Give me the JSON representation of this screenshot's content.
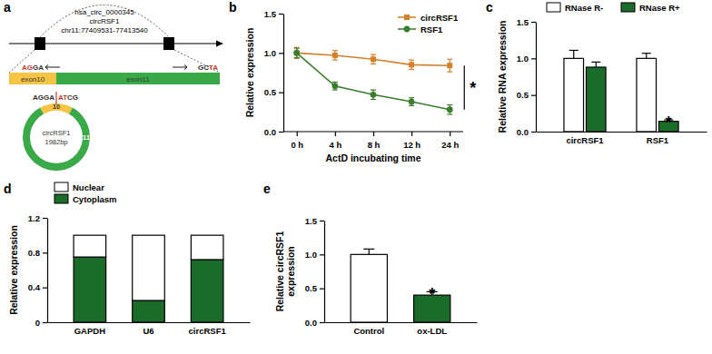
{
  "diagram": {
    "label": "a",
    "title": [
      "hsa_circ_0000345",
      "circRSF1",
      "chr11:77409531-77413540"
    ],
    "exons": [
      {
        "name": "exon10",
        "color": "#f6c445"
      },
      {
        "name": "exon11",
        "color": "#3aaa48"
      }
    ],
    "junction_left": [
      {
        "text": "AG",
        "color": "#c0392b"
      },
      {
        "text": "GA",
        "color": "#333333"
      }
    ],
    "junction_right": [
      {
        "text": "GC",
        "color": "#333333"
      },
      {
        "text": "TA",
        "color": "#c0392b"
      }
    ],
    "circle": {
      "name": "circRSF1",
      "length": "1982bp",
      "exon_labels": [
        "10",
        "11"
      ],
      "junction_left": [
        {
          "text": "AGGA",
          "color": "#333333"
        }
      ],
      "junction_right": [
        {
          "text": "AT",
          "color": "#c0392b"
        },
        {
          "text": "CG",
          "color": "#333333"
        }
      ]
    }
  },
  "chart_data": [
    {
      "type": "line",
      "label": "b",
      "xlabel": "ActD incubating time",
      "ylabel": "Relative expression",
      "categories": [
        "0 h",
        "4 h",
        "8 h",
        "12 h",
        "24 h"
      ],
      "ylim": [
        0,
        1.5
      ],
      "yticks": [
        {
          "value": 0,
          "label": "0.0"
        },
        {
          "value": 0.5,
          "label": "0.5"
        },
        {
          "value": 1,
          "label": "1.0"
        },
        {
          "value": 1.5,
          "label": "1.5"
        }
      ],
      "legend": "top-right",
      "series": [
        {
          "name": "circRSF1",
          "color": "#d4802a",
          "marker": "square",
          "line_style": "solid",
          "values": [
            1.0,
            0.97,
            0.92,
            0.85,
            0.84
          ],
          "errors": [
            0.07,
            0.06,
            0.06,
            0.06,
            0.08
          ]
        },
        {
          "name": "RSF1",
          "color": "#3a7d2c",
          "marker": "circle",
          "line_style": "solid",
          "values": [
            1.0,
            0.58,
            0.47,
            0.38,
            0.28
          ],
          "errors": [
            0.06,
            0.05,
            0.06,
            0.05,
            0.06
          ]
        }
      ],
      "annotations": [
        {
          "text": "*",
          "series": [
            "circRSF1",
            "RSF1"
          ]
        }
      ]
    },
    {
      "type": "bar",
      "label": "c",
      "ylabel": "Relative RNA expression",
      "categories": [
        "circRSF1",
        "RSF1"
      ],
      "ylim": [
        0,
        1.5
      ],
      "yticks": [
        {
          "value": 0,
          "label": "0.0"
        },
        {
          "value": 0.5,
          "label": "0.5"
        },
        {
          "value": 1,
          "label": "1.0"
        },
        {
          "value": 1.5,
          "label": "1.5"
        }
      ],
      "legend": "top",
      "series": [
        {
          "name": "RNase R-",
          "color": "#ffffff",
          "values": [
            1.0,
            1.0
          ],
          "errors": [
            0.11,
            0.07
          ]
        },
        {
          "name": "RNase R+",
          "color": "#1b6b2b",
          "values": [
            0.88,
            0.14
          ],
          "errors": [
            0.07,
            0.02
          ]
        }
      ],
      "annotations": [
        {
          "text": "*",
          "category": "RSF1",
          "series": "RNase R+"
        }
      ]
    },
    {
      "type": "bar",
      "label": "d",
      "stacked": true,
      "ylabel": "Relative expression",
      "categories": [
        "GAPDH",
        "U6",
        "circRSF1"
      ],
      "ylim": [
        0,
        1.2
      ],
      "yticks": [
        0,
        0.4,
        0.8,
        1.2
      ],
      "legend": "top-left",
      "series": [
        {
          "name": "Nuclear",
          "color": "#ffffff",
          "values": [
            0.25,
            0.75,
            0.28
          ]
        },
        {
          "name": "Cytoplasm",
          "color": "#1b6b2b",
          "values": [
            0.75,
            0.25,
            0.72
          ]
        }
      ]
    },
    {
      "type": "bar",
      "label": "e",
      "ylabel": [
        "Relative circRSF1",
        "expression"
      ],
      "categories": [
        "Control",
        "ox-LDL"
      ],
      "values": [
        1.0,
        0.4
      ],
      "errors": [
        0.08,
        0.05
      ],
      "colors": [
        "#ffffff",
        "#1b6b2b"
      ],
      "ylim": [
        0,
        1.5
      ],
      "yticks": [
        {
          "value": 0,
          "label": "0.0"
        },
        {
          "value": 0.5,
          "label": "0.5"
        },
        {
          "value": 1,
          "label": "1.0"
        },
        {
          "value": 1.5,
          "label": "1.5"
        }
      ],
      "annotations": [
        {
          "text": "*",
          "category": "ox-LDL"
        }
      ]
    }
  ]
}
